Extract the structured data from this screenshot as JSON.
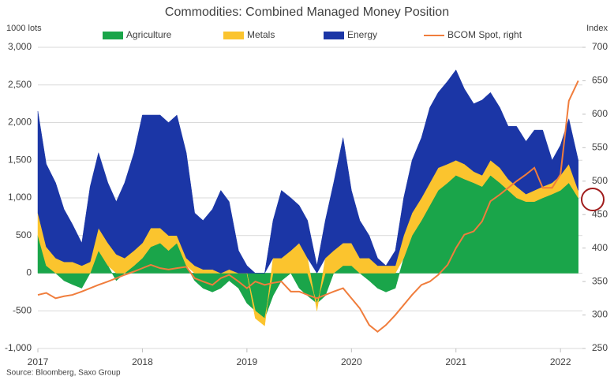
{
  "chart_data": {
    "type": "stacked-area-line",
    "title": "Commodities: Combined Managed Money Position",
    "y_label": "1000 lots",
    "y2_label": "Index",
    "source": "Source: Bloomberg, Saxo Group",
    "x": [
      2017,
      2017.08,
      2017.17,
      2017.25,
      2017.33,
      2017.42,
      2017.5,
      2017.58,
      2017.67,
      2017.75,
      2017.83,
      2017.92,
      2018,
      2018.08,
      2018.17,
      2018.25,
      2018.33,
      2018.42,
      2018.5,
      2018.58,
      2018.67,
      2018.75,
      2018.83,
      2018.92,
      2019,
      2019.08,
      2019.17,
      2019.25,
      2019.33,
      2019.42,
      2019.5,
      2019.58,
      2019.67,
      2019.75,
      2019.83,
      2019.92,
      2020,
      2020.08,
      2020.17,
      2020.25,
      2020.33,
      2020.42,
      2020.5,
      2020.58,
      2020.67,
      2020.75,
      2020.83,
      2020.92,
      2021,
      2021.08,
      2021.17,
      2021.25,
      2021.33,
      2021.42,
      2021.5,
      2021.58,
      2021.67,
      2021.75,
      2021.83,
      2021.92,
      2022,
      2022.08,
      2022.17
    ],
    "series": [
      {
        "name": "Agriculture",
        "color": "#1aa54a",
        "values": [
          500,
          100,
          0,
          -100,
          -150,
          -200,
          0,
          300,
          100,
          -100,
          0,
          100,
          200,
          350,
          400,
          300,
          400,
          100,
          -100,
          -200,
          -250,
          -200,
          -100,
          -200,
          -400,
          -500,
          -600,
          -300,
          -100,
          0,
          -200,
          -300,
          -400,
          -300,
          0,
          100,
          100,
          0,
          -100,
          -200,
          -250,
          -200,
          200,
          500,
          700,
          900,
          1100,
          1200,
          1300,
          1250,
          1200,
          1150,
          1300,
          1200,
          1100,
          1000,
          950,
          950,
          1000,
          1050,
          1100,
          1200,
          1000
        ]
      },
      {
        "name": "Metals",
        "color": "#fbc42e",
        "values": [
          300,
          250,
          200,
          150,
          150,
          100,
          150,
          300,
          300,
          250,
          200,
          200,
          200,
          250,
          200,
          200,
          100,
          100,
          100,
          50,
          50,
          0,
          50,
          0,
          0,
          -100,
          -100,
          200,
          200,
          300,
          400,
          200,
          -100,
          200,
          300,
          300,
          300,
          200,
          200,
          100,
          100,
          100,
          300,
          300,
          300,
          300,
          300,
          250,
          200,
          200,
          150,
          150,
          200,
          200,
          150,
          150,
          100,
          150,
          150,
          150,
          200,
          250,
          100
        ]
      },
      {
        "name": "Energy",
        "color": "#1b36a6",
        "values": [
          1350,
          1100,
          1000,
          700,
          500,
          300,
          1000,
          1000,
          800,
          700,
          1000,
          1300,
          1700,
          1500,
          1500,
          1500,
          1600,
          1400,
          700,
          650,
          800,
          1100,
          900,
          300,
          100,
          0,
          0,
          500,
          900,
          700,
          500,
          500,
          100,
          500,
          900,
          1400,
          700,
          500,
          300,
          100,
          0,
          200,
          500,
          700,
          800,
          1000,
          1000,
          1100,
          1200,
          1000,
          900,
          1000,
          900,
          800,
          700,
          800,
          700,
          800,
          750,
          300,
          400,
          600,
          400
        ]
      },
      {
        "name": "BCOM Spot, right",
        "color": "#f07d3c",
        "axis": "y2",
        "values": [
          330,
          333,
          325,
          328,
          330,
          335,
          340,
          345,
          350,
          355,
          360,
          365,
          370,
          375,
          370,
          368,
          370,
          372,
          355,
          350,
          345,
          355,
          360,
          350,
          340,
          350,
          345,
          348,
          350,
          335,
          335,
          330,
          325,
          330,
          335,
          340,
          325,
          310,
          285,
          275,
          285,
          300,
          315,
          330,
          345,
          350,
          360,
          375,
          400,
          420,
          425,
          440,
          470,
          480,
          490,
          500,
          510,
          520,
          490,
          490,
          510,
          620,
          650
        ]
      }
    ],
    "xlim": [
      2017,
      2022.21
    ],
    "xticks": [
      2017,
      2018,
      2019,
      2020,
      2021,
      2022
    ],
    "ylim": [
      -1000,
      3000
    ],
    "yticks": [
      {
        "value": -1000,
        "label": "-1,000"
      },
      -500,
      0,
      500,
      {
        "value": 1000,
        "label": "1,000"
      },
      {
        "value": 1500,
        "label": "1,500"
      },
      {
        "value": 2000,
        "label": "2,000"
      },
      {
        "value": 2500,
        "label": "2,500"
      },
      {
        "value": 3000,
        "label": "3,000"
      }
    ],
    "y2lim": [
      250,
      700
    ],
    "y2ticks": [
      250,
      300,
      350,
      400,
      450,
      500,
      550,
      600,
      650,
      700
    ],
    "grid": true,
    "legend": "top"
  }
}
